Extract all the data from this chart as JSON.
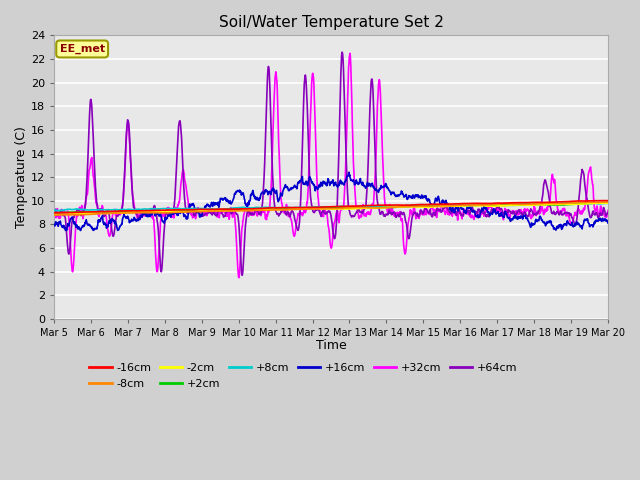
{
  "title": "Soil/Water Temperature Set 2",
  "xlabel": "Time",
  "ylabel": "Temperature (C)",
  "annotation": "EE_met",
  "ylim": [
    0,
    24
  ],
  "xlim": [
    0,
    15
  ],
  "fig_bg": "#d0d0d0",
  "plot_bg": "#e8e8e8",
  "series": {
    "-16cm": {
      "color": "#ff0000",
      "lw": 1.2
    },
    "-8cm": {
      "color": "#ff8800",
      "lw": 1.2
    },
    "-2cm": {
      "color": "#ffff00",
      "lw": 1.2
    },
    "+2cm": {
      "color": "#00cc00",
      "lw": 1.2
    },
    "+8cm": {
      "color": "#00cccc",
      "lw": 1.2
    },
    "+16cm": {
      "color": "#0000cc",
      "lw": 1.2
    },
    "+32cm": {
      "color": "#ff00ff",
      "lw": 1.2
    },
    "+64cm": {
      "color": "#8800bb",
      "lw": 1.2
    }
  },
  "xtick_labels": [
    "Mar 5",
    "Mar 6",
    "Mar 7",
    "Mar 8",
    "Mar 9",
    "Mar 10",
    "Mar 11",
    "Mar 12",
    "Mar 13",
    "Mar 14",
    "Mar 15",
    "Mar 16",
    "Mar 17",
    "Mar 18",
    "Mar 19",
    "Mar 20"
  ],
  "ytick_labels": [
    "0",
    "2",
    "4",
    "6",
    "8",
    "10",
    "12",
    "14",
    "16",
    "18",
    "20",
    "22",
    "24"
  ]
}
